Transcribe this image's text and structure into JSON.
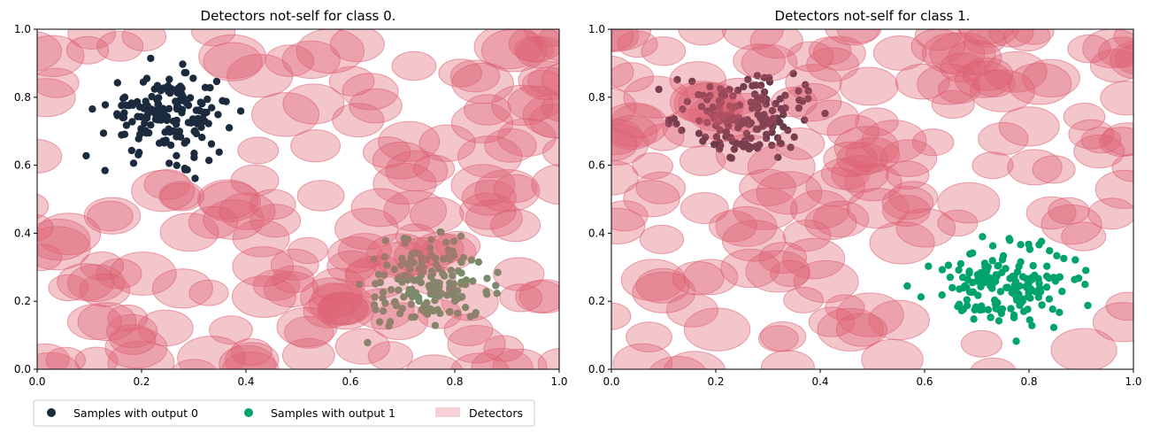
{
  "chart_data": [
    {
      "type": "scatter",
      "title": "Detectors not-self for class 0.",
      "xlim": [
        0.0,
        1.0
      ],
      "ylim": [
        0.0,
        1.0
      ],
      "xticks": [
        "0.0",
        "0.2",
        "0.4",
        "0.6",
        "0.8",
        "1.0"
      ],
      "yticks": [
        "0.0",
        "0.2",
        "0.4",
        "0.6",
        "0.8",
        "1.0"
      ],
      "grid": false,
      "detector_count": 170,
      "detector_radius_approx": 0.05,
      "class0_cluster": {
        "center": [
          0.25,
          0.75
        ],
        "spread": 0.06,
        "count": 170,
        "color": "#1b2a3c"
      },
      "class1_cluster": {
        "center": [
          0.75,
          0.25
        ],
        "spread": 0.06,
        "count": 170,
        "color": "#7a8a6a"
      }
    },
    {
      "type": "scatter",
      "title": "Detectors not-self for class 1.",
      "xlim": [
        0.0,
        1.0
      ],
      "ylim": [
        0.0,
        1.0
      ],
      "xticks": [
        "0.0",
        "0.2",
        "0.4",
        "0.6",
        "0.8",
        "1.0"
      ],
      "yticks": [
        "0.0",
        "0.2",
        "0.4",
        "0.6",
        "0.8",
        "1.0"
      ],
      "grid": false,
      "detector_count": 170,
      "detector_radius_approx": 0.05,
      "class0_cluster": {
        "center": [
          0.25,
          0.75
        ],
        "spread": 0.06,
        "count": 170,
        "color": "#6a3a4a"
      },
      "class1_cluster": {
        "center": [
          0.75,
          0.25
        ],
        "spread": 0.06,
        "count": 170,
        "color": "#00a36c"
      }
    }
  ],
  "legend": {
    "placement": "bottom-left",
    "items": [
      {
        "label": "Samples with output 0",
        "color": "#1b2a3c",
        "marker": "circle"
      },
      {
        "label": "Samples with output 1",
        "color": "#00a36c",
        "marker": "circle"
      },
      {
        "label": "Detectors",
        "color": "#e06377",
        "marker": "patch"
      }
    ]
  },
  "colors": {
    "detector": "#e06377",
    "class0": "#1b2a3c",
    "class1": "#00a36c"
  }
}
